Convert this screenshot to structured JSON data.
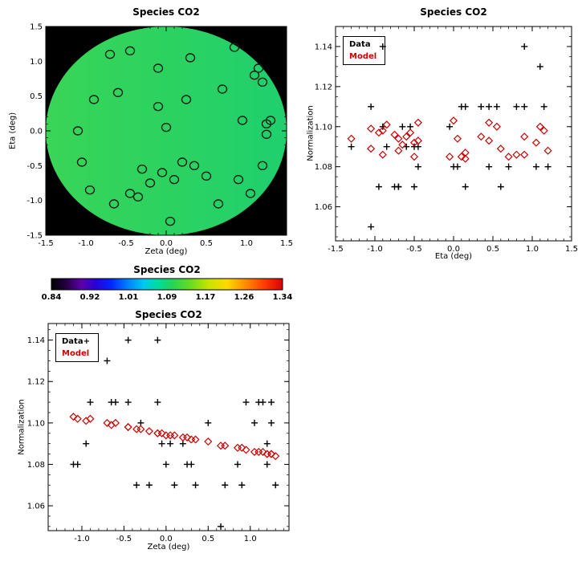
{
  "figure": {
    "background": "#ffffff",
    "species": "CO2"
  },
  "colors": {
    "data_marker": "#000000",
    "model_marker": "#cc0000",
    "map_background": "#000000"
  },
  "chart_data": [
    {
      "id": "sky-map",
      "type": "scatter",
      "title": "Species CO2",
      "xlabel": "Zeta (deg)",
      "ylabel": "Eta (deg)",
      "xlim": [
        -1.5,
        1.5
      ],
      "ylim": [
        -1.5,
        1.5
      ],
      "xticks": {
        "values": [
          -1.5,
          -1.0,
          -0.5,
          0.0,
          0.5,
          1.0,
          1.5
        ],
        "labels": [
          "-1.5",
          "-1.0",
          "-0.5",
          "0.0",
          "0.5",
          "1.0",
          "1.5"
        ]
      },
      "yticks": {
        "values": [
          -1.5,
          -1.0,
          -0.5,
          0.0,
          0.5,
          1.0,
          1.5
        ],
        "labels": [
          "-1.5",
          "-1.0",
          "-0.5",
          "0.0",
          "0.5",
          "1.0",
          "1.5"
        ]
      },
      "background": "#000000",
      "disk_gradient": [
        "#39d557",
        "#2cd260",
        "#1fd06e"
      ],
      "marker": "circle",
      "points": {
        "zeta": [
          -1.1,
          -1.05,
          -0.95,
          -0.9,
          -0.7,
          -0.65,
          -0.6,
          -0.45,
          -0.45,
          -0.35,
          -0.3,
          -0.2,
          -0.1,
          -0.1,
          -0.05,
          0.0,
          0.05,
          0.1,
          0.2,
          0.25,
          0.3,
          0.35,
          0.5,
          0.65,
          0.7,
          0.85,
          0.9,
          0.95,
          1.05,
          1.1,
          1.15,
          1.2,
          1.2,
          1.25,
          1.25,
          1.3
        ],
        "eta": [
          0.0,
          -0.45,
          -0.85,
          0.45,
          1.1,
          -1.05,
          0.55,
          1.15,
          -0.9,
          -0.95,
          -0.55,
          -0.75,
          0.9,
          0.35,
          -0.6,
          0.05,
          -1.3,
          -0.7,
          -0.45,
          0.45,
          1.05,
          -0.5,
          -0.65,
          -1.05,
          0.6,
          1.2,
          -0.7,
          0.15,
          -0.9,
          0.8,
          0.9,
          0.7,
          -0.5,
          0.1,
          -0.05,
          0.15
        ]
      }
    },
    {
      "id": "normalization-vs-eta",
      "type": "scatter",
      "title": "Species CO2",
      "xlabel": "Eta (deg)",
      "ylabel": "Normalization",
      "xlim": [
        -1.5,
        1.5
      ],
      "ylim": [
        1.043,
        1.15
      ],
      "xticks": {
        "values": [
          -1.5,
          -1.0,
          -0.5,
          0.0,
          0.5,
          1.0,
          1.5
        ],
        "labels": [
          "-1.5",
          "-1.0",
          "-0.5",
          "0.0",
          "0.5",
          "1.0",
          "1.5"
        ]
      },
      "yticks": {
        "values": [
          1.06,
          1.08,
          1.1,
          1.12,
          1.14
        ],
        "labels": [
          "1.06",
          "1.08",
          "1.10",
          "1.12",
          "1.14"
        ]
      },
      "legend": {
        "data": "Data",
        "model": "Model"
      },
      "series": [
        {
          "name": "Data",
          "marker": "plus",
          "color": "#000000",
          "x": [
            0.0,
            -0.45,
            -0.85,
            0.45,
            1.1,
            -1.05,
            0.55,
            1.15,
            -0.9,
            -0.95,
            -0.55,
            -0.75,
            0.9,
            0.35,
            -0.6,
            0.05,
            -1.3,
            -0.7,
            -0.45,
            0.45,
            1.05,
            -0.5,
            -0.65,
            -1.05,
            0.6,
            1.2,
            -0.7,
            0.15,
            -0.9,
            0.8,
            0.9,
            0.7,
            -0.5,
            0.1,
            -0.05,
            0.15
          ],
          "y": [
            1.08,
            1.08,
            1.09,
            1.11,
            1.13,
            1.11,
            1.11,
            1.11,
            1.14,
            1.07,
            1.1,
            1.07,
            1.14,
            1.11,
            1.09,
            1.08,
            1.09,
            1.07,
            1.09,
            1.08,
            1.08,
            1.07,
            1.1,
            1.05,
            1.07,
            1.08,
            1.07,
            1.11,
            1.1,
            1.11,
            1.11,
            1.08,
            1.09,
            1.11,
            1.1,
            1.07
          ]
        },
        {
          "name": "Model",
          "marker": "diamond",
          "color": "#cc0000",
          "x": [
            0.0,
            -0.45,
            -0.85,
            0.45,
            1.1,
            -1.05,
            0.55,
            1.15,
            -0.9,
            -0.95,
            -0.55,
            -0.75,
            0.9,
            0.35,
            -0.6,
            0.05,
            -1.3,
            -0.7,
            -0.45,
            0.45,
            1.05,
            -0.5,
            -0.65,
            -1.05,
            0.6,
            1.2,
            -0.7,
            0.15,
            -0.9,
            0.8,
            0.9,
            0.7,
            -0.5,
            0.1,
            -0.05,
            0.15
          ],
          "y": [
            1.103,
            1.102,
            1.101,
            1.102,
            1.1,
            1.099,
            1.1,
            1.098,
            1.098,
            1.097,
            1.097,
            1.096,
            1.095,
            1.095,
            1.095,
            1.094,
            1.094,
            1.094,
            1.093,
            1.093,
            1.092,
            1.092,
            1.091,
            1.089,
            1.089,
            1.088,
            1.088,
            1.087,
            1.086,
            1.086,
            1.086,
            1.085,
            1.085,
            1.085,
            1.085,
            1.084
          ]
        }
      ]
    },
    {
      "id": "colorbar",
      "type": "colorbar",
      "title": "Species CO2",
      "tick_labels": [
        "0.84",
        "0.92",
        "1.01",
        "1.09",
        "1.17",
        "1.26",
        "1.34"
      ],
      "stops": [
        [
          0.0,
          "#000000"
        ],
        [
          0.06,
          "#20003c"
        ],
        [
          0.13,
          "#5c00a8"
        ],
        [
          0.19,
          "#2a00d8"
        ],
        [
          0.26,
          "#0028ff"
        ],
        [
          0.33,
          "#0080ff"
        ],
        [
          0.4,
          "#00c8f0"
        ],
        [
          0.46,
          "#00dca0"
        ],
        [
          0.52,
          "#22d45a"
        ],
        [
          0.6,
          "#66dc20"
        ],
        [
          0.68,
          "#c8e400"
        ],
        [
          0.76,
          "#ffd800"
        ],
        [
          0.84,
          "#ff8c00"
        ],
        [
          0.92,
          "#ff3c00"
        ],
        [
          1.0,
          "#dd0000"
        ]
      ]
    },
    {
      "id": "normalization-vs-zeta",
      "type": "scatter",
      "title": "Species CO2",
      "xlabel": "Zeta (deg)",
      "ylabel": "Normalization",
      "xlim": [
        -1.4,
        1.46
      ],
      "ylim": [
        1.048,
        1.148
      ],
      "xticks": {
        "values": [
          -1.0,
          -0.5,
          0.0,
          0.5,
          1.0
        ],
        "labels": [
          "-1.0",
          "-0.5",
          "0.0",
          "0.5",
          "1.0"
        ]
      },
      "yticks": {
        "values": [
          1.06,
          1.08,
          1.1,
          1.12,
          1.14
        ],
        "labels": [
          "1.06",
          "1.08",
          "1.10",
          "1.12",
          "1.14"
        ]
      },
      "legend": {
        "data": "Data+",
        "model": "Model"
      },
      "series": [
        {
          "name": "Data",
          "marker": "plus",
          "color": "#000000",
          "x": [
            -1.1,
            -1.05,
            -0.95,
            -0.9,
            -0.7,
            -0.65,
            -0.6,
            -0.45,
            -0.45,
            -0.35,
            -0.3,
            -0.2,
            -0.1,
            -0.1,
            -0.05,
            0.0,
            0.05,
            0.1,
            0.2,
            0.25,
            0.3,
            0.35,
            0.5,
            0.65,
            0.7,
            0.85,
            0.9,
            0.95,
            1.05,
            1.1,
            1.15,
            1.2,
            1.2,
            1.25,
            1.25,
            1.3
          ],
          "y": [
            1.08,
            1.08,
            1.09,
            1.11,
            1.13,
            1.11,
            1.11,
            1.11,
            1.14,
            1.07,
            1.1,
            1.07,
            1.14,
            1.11,
            1.09,
            1.08,
            1.09,
            1.07,
            1.09,
            1.08,
            1.08,
            1.07,
            1.1,
            1.05,
            1.07,
            1.08,
            1.07,
            1.11,
            1.1,
            1.11,
            1.11,
            1.08,
            1.09,
            1.11,
            1.1,
            1.07
          ]
        },
        {
          "name": "Model",
          "marker": "diamond",
          "color": "#cc0000",
          "x": [
            -1.1,
            -1.05,
            -0.95,
            -0.9,
            -0.7,
            -0.65,
            -0.6,
            -0.45,
            -0.45,
            -0.35,
            -0.3,
            -0.2,
            -0.1,
            -0.1,
            -0.05,
            0.0,
            0.05,
            0.1,
            0.2,
            0.25,
            0.3,
            0.35,
            0.5,
            0.65,
            0.7,
            0.85,
            0.9,
            0.95,
            1.05,
            1.1,
            1.15,
            1.2,
            1.2,
            1.25,
            1.25,
            1.3
          ],
          "y": [
            1.103,
            1.102,
            1.101,
            1.102,
            1.1,
            1.099,
            1.1,
            1.098,
            1.098,
            1.097,
            1.097,
            1.096,
            1.095,
            1.095,
            1.095,
            1.094,
            1.094,
            1.094,
            1.093,
            1.093,
            1.092,
            1.092,
            1.091,
            1.089,
            1.089,
            1.088,
            1.088,
            1.087,
            1.086,
            1.086,
            1.086,
            1.085,
            1.085,
            1.085,
            1.085,
            1.084
          ]
        }
      ]
    }
  ]
}
